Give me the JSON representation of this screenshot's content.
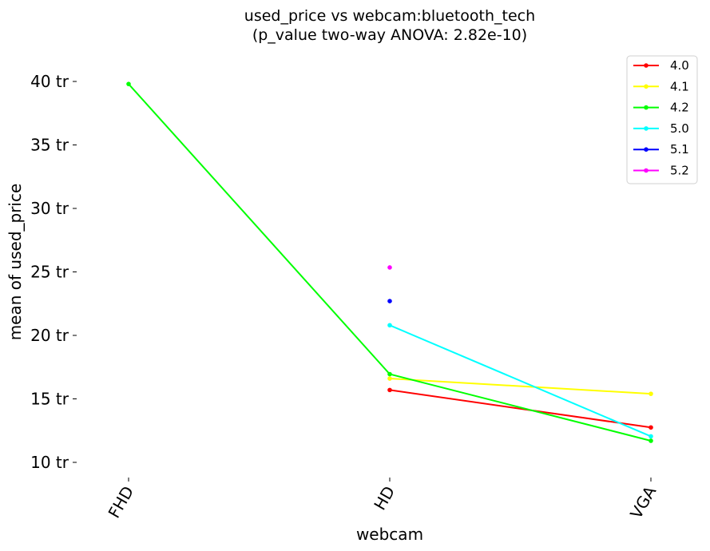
{
  "chart_data": {
    "type": "line",
    "title": "used_price vs webcam:bluetooth_tech",
    "subtitle": "(p_value two-way ANOVA: 2.82e-10)",
    "xlabel": "webcam",
    "ylabel": "mean of used_price",
    "categories": [
      "FHD",
      "HD",
      "VGA"
    ],
    "ylim": [
      9.2,
      42
    ],
    "yticks": [
      10,
      15,
      20,
      25,
      30,
      35,
      40
    ],
    "ytick_labels": [
      "10 tr",
      "15 tr",
      "20 tr",
      "25 tr",
      "30 tr",
      "35 tr",
      "40 tr"
    ],
    "grid": false,
    "legend_position": "top-right",
    "series": [
      {
        "name": "4.0",
        "color": "#ff0000",
        "values": [
          null,
          15.7,
          12.75
        ]
      },
      {
        "name": "4.1",
        "color": "#ffff00",
        "values": [
          null,
          16.6,
          15.4
        ]
      },
      {
        "name": "4.2",
        "color": "#00ff00",
        "values": [
          39.8,
          16.95,
          11.7
        ]
      },
      {
        "name": "5.0",
        "color": "#00ffff",
        "values": [
          null,
          20.8,
          12.05
        ]
      },
      {
        "name": "5.1",
        "color": "#0000ff",
        "values": [
          null,
          22.7,
          null
        ]
      },
      {
        "name": "5.2",
        "color": "#ff00ff",
        "values": [
          null,
          25.35,
          null
        ]
      }
    ]
  }
}
